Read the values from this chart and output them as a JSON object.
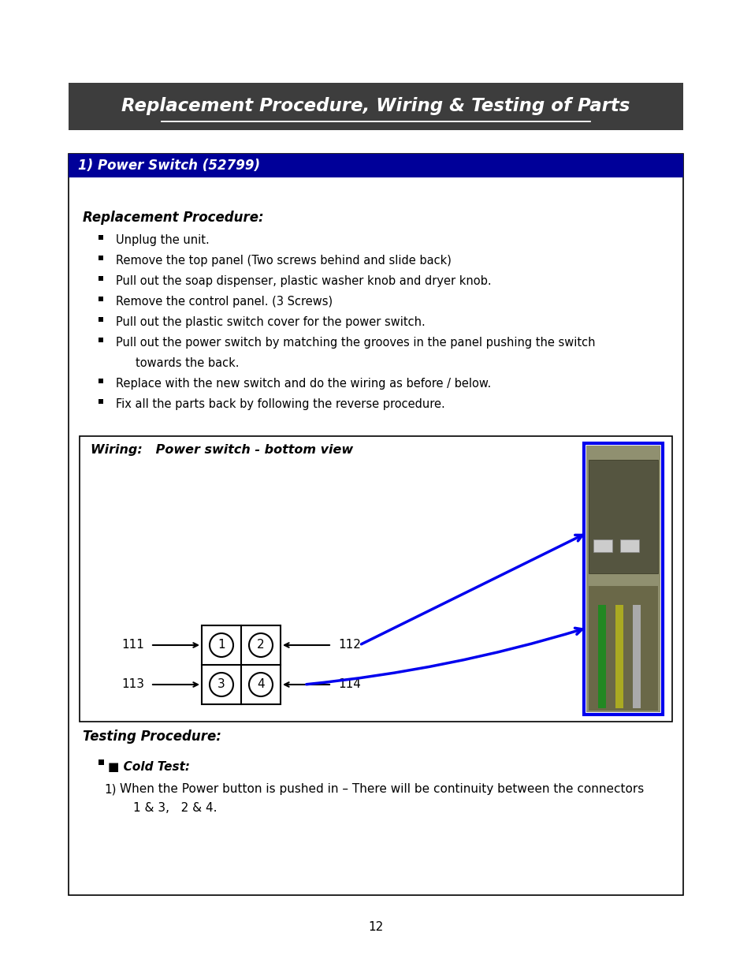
{
  "page_bg": "#ffffff",
  "title_text": "Replacement Procedure, Wiring & Testing of Parts",
  "title_bg": "#3d3d3d",
  "title_color": "#ffffff",
  "section_header": "1) Power Switch (52799)",
  "section_header_bg": "#000099",
  "section_header_color": "#ffffff",
  "replacement_heading": "Replacement Procedure:",
  "testing_heading": "Testing Procedure:",
  "cold_test_label": "■ Cold Test:",
  "cold_test_line1": "When the Power button is pushed in – There will be continuity between the connectors",
  "cold_test_line2": "1 & 3,   2 & 4.",
  "wiring_title": "Wiring:   Power switch - bottom view",
  "page_number": "12",
  "bullets": [
    "Unplug the unit.",
    "Remove the top panel (Two screws behind and slide back)",
    "Pull out the soap dispenser, plastic washer knob and dryer knob.",
    "Remove the control panel. (3 Screws)",
    "Pull out the plastic switch cover for the power switch.",
    "Pull out the power switch by matching the grooves in the panel pushing the switch",
    "towards the back.",
    "Replace with the new switch and do the wiring as before / below.",
    "Fix all the parts back by following the reverse procedure."
  ],
  "bullet_is_continuation": [
    false,
    false,
    false,
    false,
    false,
    false,
    true,
    false,
    false
  ],
  "outer_box_color": "#000000",
  "blue_arrow_color": "#0000ee",
  "photo_border_color": "#0000ee"
}
